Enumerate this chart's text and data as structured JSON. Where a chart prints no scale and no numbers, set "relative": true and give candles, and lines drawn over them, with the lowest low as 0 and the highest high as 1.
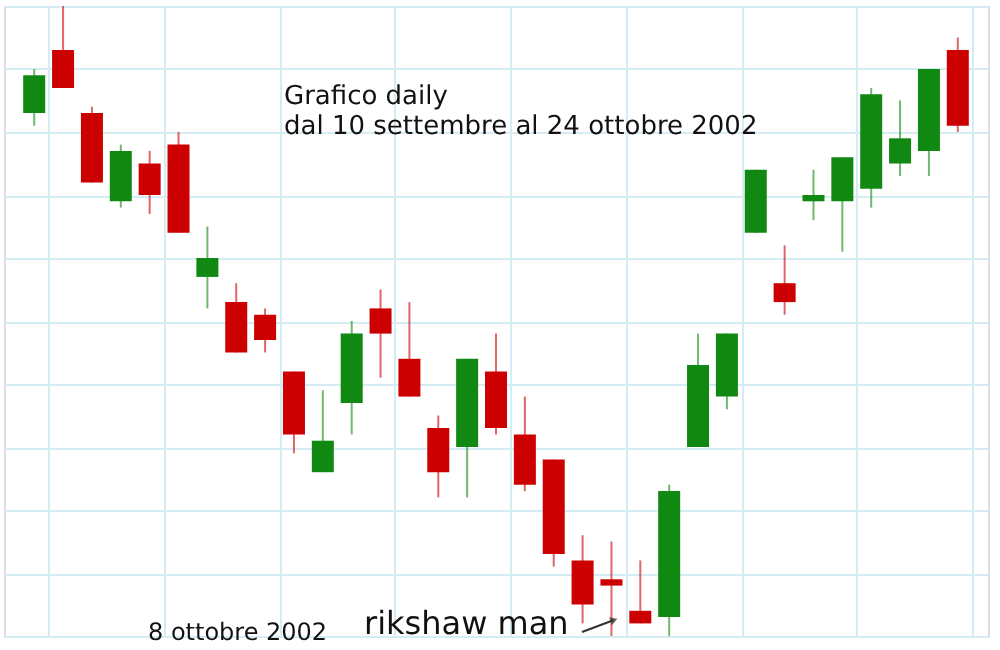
{
  "chart_data": {
    "type": "candlestick",
    "relative": true,
    "grid": true,
    "title": "Grafico daily",
    "subtitle": "dal 10 settembre al 24 ottobre 2002",
    "annotations": [
      "8 ottobre 2002",
      "rikshaw man"
    ],
    "categories": [
      null,
      null,
      null,
      null,
      null,
      null,
      null,
      null,
      null,
      null,
      null,
      null,
      null,
      null,
      null,
      null,
      null,
      null,
      null,
      null,
      null,
      null,
      null,
      null,
      null,
      null,
      null,
      null,
      null,
      null,
      null,
      null,
      null
    ],
    "ohlc": [
      [
        0.83,
        0.9,
        0.81,
        0.89
      ],
      [
        0.93,
        1,
        0.87,
        0.87
      ],
      [
        0.83,
        0.84,
        0.72,
        0.72
      ],
      [
        0.69,
        0.78,
        0.68,
        0.77
      ],
      [
        0.75,
        0.77,
        0.67,
        0.7
      ],
      [
        0.78,
        0.8,
        0.64,
        0.64
      ],
      [
        0.57,
        0.65,
        0.52,
        0.6
      ],
      [
        0.53,
        0.56,
        0.45,
        0.45
      ],
      [
        0.51,
        0.52,
        0.45,
        0.47
      ],
      [
        0.42,
        0.42,
        0.29,
        0.32
      ],
      [
        0.26,
        0.39,
        0.26,
        0.31
      ],
      [
        0.37,
        0.5,
        0.32,
        0.48
      ],
      [
        0.52,
        0.55,
        0.41,
        0.48
      ],
      [
        0.44,
        0.53,
        0.38,
        0.38
      ],
      [
        0.33,
        0.35,
        0.22,
        0.26
      ],
      [
        0.3,
        0.44,
        0.22,
        0.44
      ],
      [
        0.42,
        0.48,
        0.32,
        0.33
      ],
      [
        0.32,
        0.38,
        0.23,
        0.24
      ],
      [
        0.28,
        0.28,
        0.11,
        0.13
      ],
      [
        0.12,
        0.16,
        0.02,
        0.05
      ],
      [
        0.09,
        0.15,
        0,
        0.08
      ],
      [
        0.04,
        0.12,
        0.02,
        0.02
      ],
      [
        0.03,
        0.24,
        0,
        0.23
      ],
      [
        0.3,
        0.48,
        0.3,
        0.43
      ],
      [
        0.38,
        0.48,
        0.36,
        0.48
      ],
      [
        0.64,
        0.74,
        0.64,
        0.74
      ],
      [
        0.56,
        0.62,
        0.51,
        0.53
      ],
      [
        0.69,
        0.74,
        0.66,
        0.7
      ],
      [
        0.69,
        0.76,
        0.61,
        0.76
      ],
      [
        0.71,
        0.87,
        0.68,
        0.86
      ],
      [
        0.75,
        0.85,
        0.73,
        0.79
      ],
      [
        0.77,
        0.9,
        0.73,
        0.9
      ],
      [
        0.93,
        0.95,
        0.8,
        0.81
      ]
    ],
    "colors": [
      "#118811",
      "#cc0000",
      "#cc0000",
      "#118811",
      "#cc0000",
      "#cc0000",
      "#118811",
      "#cc0000",
      "#cc0000",
      "#cc0000",
      "#118811",
      "#118811",
      "#cc0000",
      "#cc0000",
      "#cc0000",
      "#118811",
      "#cc0000",
      "#cc0000",
      "#cc0000",
      "#cc0000",
      "#cc0000",
      "#cc0000",
      "#118811",
      "#118811",
      "#118811",
      "#118811",
      "#cc0000",
      "#118811",
      "#118811",
      "#118811",
      "#118811",
      "#118811",
      "#cc0000"
    ]
  }
}
